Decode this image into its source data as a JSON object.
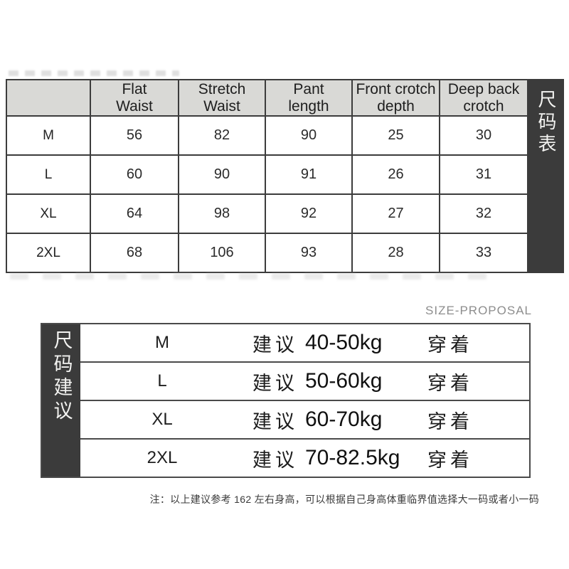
{
  "size_chart": {
    "vertical_label": "尺码表",
    "columns": [
      "Flat\nWaist",
      "Stretch\nWaist",
      "Pant\nlength",
      "Front crotch\ndepth",
      "Deep back\ncrotch"
    ],
    "rows": [
      {
        "size": "M",
        "values": [
          "56",
          "82",
          "90",
          "25",
          "30"
        ]
      },
      {
        "size": "L",
        "values": [
          "60",
          "90",
          "91",
          "26",
          "31"
        ]
      },
      {
        "size": "XL",
        "values": [
          "64",
          "98",
          "92",
          "27",
          "32"
        ]
      },
      {
        "size": "2XL",
        "values": [
          "68",
          "106",
          "93",
          "28",
          "33"
        ]
      }
    ]
  },
  "size_proposal": {
    "heading": "SIZE-PROPOSAL",
    "vertical_label": "尺码建议",
    "rows": [
      {
        "size": "M",
        "advice_prefix": "建议",
        "weight_range": "40-50kg",
        "advice_suffix": "穿着"
      },
      {
        "size": "L",
        "advice_prefix": "建议",
        "weight_range": "50-60kg",
        "advice_suffix": "穿着"
      },
      {
        "size": "XL",
        "advice_prefix": "建议",
        "weight_range": "60-70kg",
        "advice_suffix": "穿着"
      },
      {
        "size": "2XL",
        "advice_prefix": "建议",
        "weight_range": "70-82.5kg",
        "advice_suffix": "穿着"
      }
    ]
  },
  "footnote": "注：以上建议参考 162 左右身高，可以根据自己身高体重临界值选择大一码或者小一码",
  "colors": {
    "bar_background": "#3b3b3b",
    "header_background": "#d9d9d6",
    "table_border": "#3c3c3c",
    "heading_gray": "#8d8d8d"
  }
}
